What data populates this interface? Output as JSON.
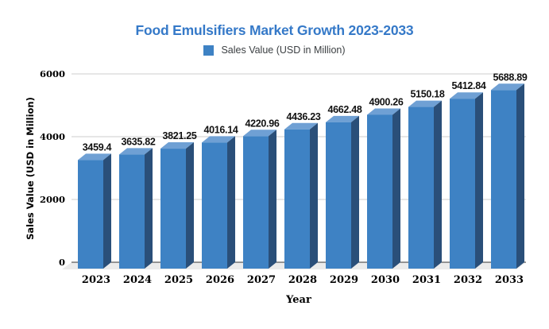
{
  "chart_data": {
    "type": "bar",
    "style": "3d",
    "title": "Food Emulsifiers Market Growth 2023-2033",
    "legend": "Sales Value (USD in Million)",
    "legend_position": "top-center",
    "xlabel": "Year",
    "ylabel": "Sales Value (USD in Million)",
    "categories": [
      "2023",
      "2024",
      "2025",
      "2026",
      "2027",
      "2028",
      "2029",
      "2030",
      "2031",
      "2032",
      "2033"
    ],
    "values": [
      3459.4,
      3635.82,
      3821.25,
      4016.14,
      4220.96,
      4436.23,
      4662.48,
      4900.26,
      5150.18,
      5412.84,
      5688.89
    ],
    "value_labels": [
      "3459.4",
      "3635.82",
      "3821.25",
      "4016.14",
      "4220.96",
      "4436.23",
      "4662.48",
      "4900.26",
      "5150.18",
      "5412.84",
      "5688.89"
    ],
    "y_ticks": [
      {
        "label": "0",
        "value": 0
      },
      {
        "label": "2000",
        "value": 2000
      },
      {
        "label": "4000",
        "value": 4000
      },
      {
        "label": "6000",
        "value": 6000
      }
    ],
    "ylim": [
      0,
      6000
    ],
    "grid": true,
    "colors": {
      "title": "#3579c8",
      "bar_front": "#3e82c4",
      "bar_top": "#6fa0d4",
      "bar_side": "#2a4f79",
      "legend_swatch": "#3e82c4",
      "legend_text": "#3c4043",
      "gridline": "#cccccc",
      "axis_line": "#333333",
      "floor": "#ebebeb",
      "value_label_text": "#111111"
    }
  }
}
